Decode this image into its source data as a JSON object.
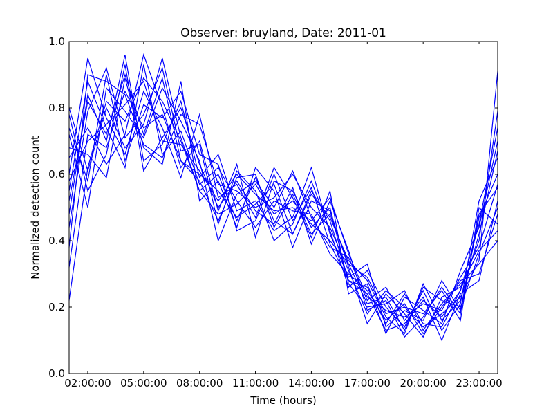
{
  "chart_data": {
    "type": "line",
    "title": "Observer: bruyland, Date: 2011-01",
    "xlabel": "Time (hours)",
    "ylabel": "Normalized detection count",
    "x_unit": "hours of day",
    "xlim": [
      1.0,
      24.0
    ],
    "ylim": [
      0.0,
      1.0
    ],
    "x_ticks": [
      2,
      5,
      8,
      11,
      14,
      17,
      20,
      23
    ],
    "x_tick_labels": [
      "02:00:00",
      "05:00:00",
      "08:00:00",
      "11:00:00",
      "14:00:00",
      "17:00:00",
      "20:00:00",
      "23:00:00"
    ],
    "y_ticks": [
      0.0,
      0.2,
      0.4,
      0.6,
      0.8,
      1.0
    ],
    "y_tick_labels": [
      "0.0",
      "0.2",
      "0.4",
      "0.6",
      "0.8",
      "1.0"
    ],
    "grid": false,
    "legend": "none",
    "line_color": "#0000ff",
    "x": [
      1,
      2,
      3,
      4,
      5,
      6,
      7,
      8,
      9,
      10,
      11,
      12,
      13,
      14,
      15,
      16,
      17,
      18,
      19,
      20,
      21,
      22,
      23,
      24
    ],
    "series": [
      {
        "values": [
          0.22,
          0.62,
          0.82,
          0.76,
          0.89,
          0.82,
          0.7,
          0.55,
          0.48,
          0.51,
          0.57,
          0.48,
          0.52,
          0.45,
          0.4,
          0.33,
          0.29,
          0.18,
          0.2,
          0.14,
          0.18,
          0.23,
          0.34,
          0.91
        ]
      },
      {
        "values": [
          0.32,
          0.72,
          0.68,
          0.85,
          0.74,
          0.78,
          0.64,
          0.6,
          0.55,
          0.47,
          0.51,
          0.57,
          0.42,
          0.55,
          0.46,
          0.28,
          0.24,
          0.13,
          0.15,
          0.22,
          0.17,
          0.25,
          0.4,
          0.79
        ]
      },
      {
        "values": [
          0.78,
          0.55,
          0.66,
          0.93,
          0.61,
          0.71,
          0.8,
          0.63,
          0.5,
          0.58,
          0.49,
          0.45,
          0.56,
          0.39,
          0.52,
          0.37,
          0.19,
          0.22,
          0.11,
          0.17,
          0.26,
          0.18,
          0.48,
          0.56
        ]
      },
      {
        "values": [
          0.55,
          0.88,
          0.74,
          0.62,
          0.93,
          0.66,
          0.73,
          0.57,
          0.62,
          0.52,
          0.44,
          0.52,
          0.49,
          0.48,
          0.36,
          0.3,
          0.25,
          0.16,
          0.21,
          0.12,
          0.2,
          0.28,
          0.3,
          0.48
        ]
      },
      {
        "values": [
          0.44,
          0.79,
          0.92,
          0.71,
          0.78,
          0.92,
          0.67,
          0.69,
          0.45,
          0.61,
          0.55,
          0.4,
          0.45,
          0.58,
          0.43,
          0.26,
          0.31,
          0.2,
          0.14,
          0.25,
          0.13,
          0.21,
          0.52,
          0.65
        ]
      },
      {
        "values": [
          0.68,
          0.66,
          0.59,
          0.89,
          0.68,
          0.63,
          0.88,
          0.52,
          0.58,
          0.44,
          0.62,
          0.55,
          0.38,
          0.52,
          0.49,
          0.32,
          0.15,
          0.24,
          0.18,
          0.11,
          0.23,
          0.26,
          0.37,
          0.43
        ]
      },
      {
        "values": [
          0.6,
          0.95,
          0.77,
          0.66,
          0.85,
          0.74,
          0.59,
          0.78,
          0.53,
          0.57,
          0.47,
          0.62,
          0.53,
          0.41,
          0.55,
          0.24,
          0.27,
          0.12,
          0.23,
          0.19,
          0.15,
          0.31,
          0.44,
          0.7
        ]
      },
      {
        "values": [
          0.72,
          0.5,
          0.86,
          0.79,
          0.71,
          0.86,
          0.76,
          0.64,
          0.4,
          0.54,
          0.58,
          0.5,
          0.61,
          0.47,
          0.38,
          0.35,
          0.22,
          0.26,
          0.16,
          0.23,
          0.1,
          0.24,
          0.28,
          0.52
        ]
      },
      {
        "values": [
          0.48,
          0.84,
          0.7,
          0.96,
          0.64,
          0.69,
          0.82,
          0.59,
          0.66,
          0.49,
          0.52,
          0.43,
          0.47,
          0.62,
          0.42,
          0.29,
          0.33,
          0.14,
          0.19,
          0.16,
          0.28,
          0.19,
          0.47,
          0.6
        ]
      },
      {
        "values": [
          0.65,
          0.74,
          0.63,
          0.72,
          0.96,
          0.8,
          0.62,
          0.7,
          0.49,
          0.63,
          0.41,
          0.58,
          0.55,
          0.44,
          0.5,
          0.27,
          0.2,
          0.21,
          0.25,
          0.13,
          0.21,
          0.27,
          0.33,
          0.4
        ]
      },
      {
        "values": [
          0.8,
          0.61,
          0.8,
          0.68,
          0.75,
          0.95,
          0.71,
          0.55,
          0.6,
          0.46,
          0.59,
          0.46,
          0.42,
          0.54,
          0.47,
          0.34,
          0.28,
          0.17,
          0.12,
          0.27,
          0.16,
          0.22,
          0.42,
          0.67
        ]
      },
      {
        "values": [
          0.38,
          0.9,
          0.88,
          0.84,
          0.69,
          0.65,
          0.78,
          0.75,
          0.57,
          0.55,
          0.5,
          0.53,
          0.6,
          0.5,
          0.44,
          0.31,
          0.18,
          0.25,
          0.2,
          0.18,
          0.25,
          0.16,
          0.5,
          0.45
        ]
      },
      {
        "values": [
          0.58,
          0.7,
          0.75,
          0.81,
          0.88,
          0.7,
          0.69,
          0.61,
          0.52,
          0.6,
          0.54,
          0.49,
          0.5,
          0.46,
          0.53,
          0.36,
          0.23,
          0.19,
          0.17,
          0.21,
          0.19,
          0.29,
          0.38,
          0.57
        ]
      },
      {
        "values": [
          0.74,
          0.58,
          0.9,
          0.64,
          0.81,
          0.77,
          0.85,
          0.66,
          0.63,
          0.43,
          0.46,
          0.6,
          0.46,
          0.56,
          0.39,
          0.28,
          0.26,
          0.15,
          0.24,
          0.15,
          0.14,
          0.25,
          0.45,
          0.74
        ]
      },
      {
        "values": [
          0.52,
          0.82,
          0.72,
          0.9,
          0.72,
          0.89,
          0.64,
          0.58,
          0.46,
          0.59,
          0.6,
          0.44,
          0.54,
          0.42,
          0.48,
          0.33,
          0.21,
          0.23,
          0.13,
          0.26,
          0.22,
          0.2,
          0.36,
          0.5
        ]
      }
    ]
  }
}
